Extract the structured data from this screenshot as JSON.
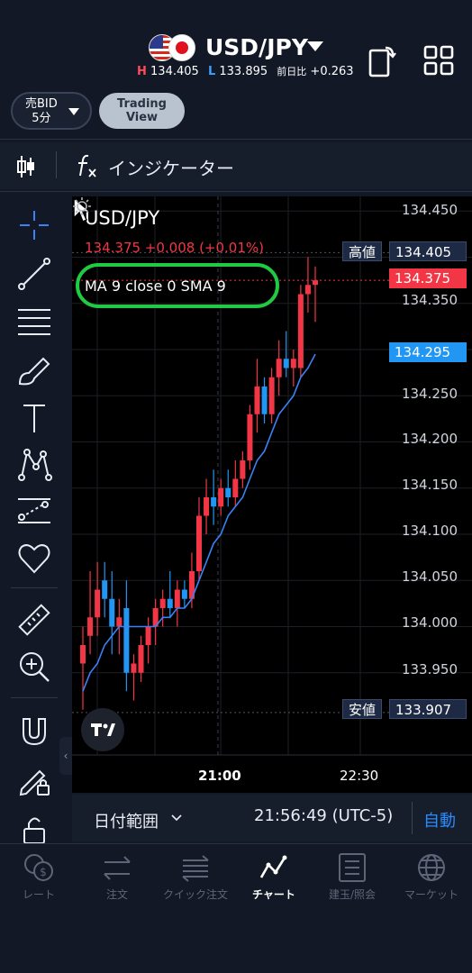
{
  "header": {
    "pair": "USD/JPY",
    "high_prefix": "H",
    "high": "134.405",
    "low_prefix": "L",
    "low": "133.895",
    "change_label": "前日比",
    "change": "+0.263"
  },
  "toolbar": {
    "bid_line1": "売BID",
    "bid_line2": "5分",
    "tv_line1": "Trading",
    "tv_line2": "View",
    "indicator_label": "インジケーター"
  },
  "chart": {
    "title": "USD/JPY",
    "quote": "134.375  +0.008 (+0.01%)",
    "ma_legend": "MA 9 close 0 SMA 9",
    "high_tag_label": "高値",
    "high_tag_value": "134.405",
    "last_price": "134.375",
    "ma_value": "134.295",
    "low_tag_label": "安値",
    "low_tag_value": "133.907",
    "y_ticks": [
      "134.450",
      "134.350",
      "134.250",
      "134.200",
      "134.150",
      "134.100",
      "134.050",
      "134.000",
      "133.950"
    ],
    "x_ticks": [
      "21:00",
      "22:30"
    ]
  },
  "chart_data": {
    "type": "candlestick",
    "title": "USD/JPY",
    "interval": "5分",
    "ylim": [
      133.9,
      134.46
    ],
    "y_ticks": [
      133.95,
      134.0,
      134.05,
      134.1,
      134.15,
      134.2,
      134.25,
      134.3,
      134.35,
      134.4,
      134.45
    ],
    "x_ticks": [
      "21:00",
      "22:30"
    ],
    "candles": [
      {
        "o": 133.96,
        "h": 134.0,
        "l": 133.91,
        "c": 133.98
      },
      {
        "o": 133.99,
        "h": 134.06,
        "l": 133.97,
        "c": 134.01
      },
      {
        "o": 134.01,
        "h": 134.07,
        "l": 133.99,
        "c": 134.04
      },
      {
        "o": 134.05,
        "h": 134.07,
        "l": 134.01,
        "c": 134.03
      },
      {
        "o": 134.03,
        "h": 134.06,
        "l": 133.97,
        "c": 134.0
      },
      {
        "o": 134.0,
        "h": 134.03,
        "l": 133.97,
        "c": 134.01
      },
      {
        "o": 134.02,
        "h": 134.05,
        "l": 133.93,
        "c": 133.95
      },
      {
        "o": 133.95,
        "h": 133.97,
        "l": 133.92,
        "c": 133.96
      },
      {
        "o": 133.95,
        "h": 133.99,
        "l": 133.94,
        "c": 133.98
      },
      {
        "o": 133.98,
        "h": 134.01,
        "l": 133.96,
        "c": 134.0
      },
      {
        "o": 134.0,
        "h": 134.03,
        "l": 133.98,
        "c": 134.02
      },
      {
        "o": 134.02,
        "h": 134.04,
        "l": 134.0,
        "c": 134.03
      },
      {
        "o": 134.03,
        "h": 134.06,
        "l": 134.01,
        "c": 134.02
      },
      {
        "o": 134.02,
        "h": 134.05,
        "l": 134.0,
        "c": 134.04
      },
      {
        "o": 134.04,
        "h": 134.05,
        "l": 134.02,
        "c": 134.03
      },
      {
        "o": 134.03,
        "h": 134.08,
        "l": 134.02,
        "c": 134.06
      },
      {
        "o": 134.06,
        "h": 134.14,
        "l": 134.05,
        "c": 134.12
      },
      {
        "o": 134.12,
        "h": 134.16,
        "l": 134.1,
        "c": 134.14
      },
      {
        "o": 134.14,
        "h": 134.17,
        "l": 134.11,
        "c": 134.13
      },
      {
        "o": 134.13,
        "h": 134.16,
        "l": 134.12,
        "c": 134.15
      },
      {
        "o": 134.15,
        "h": 134.17,
        "l": 134.13,
        "c": 134.14
      },
      {
        "o": 134.14,
        "h": 134.18,
        "l": 134.13,
        "c": 134.16
      },
      {
        "o": 134.16,
        "h": 134.19,
        "l": 134.15,
        "c": 134.18
      },
      {
        "o": 134.18,
        "h": 134.24,
        "l": 134.17,
        "c": 134.23
      },
      {
        "o": 134.23,
        "h": 134.29,
        "l": 134.21,
        "c": 134.26
      },
      {
        "o": 134.26,
        "h": 134.27,
        "l": 134.22,
        "c": 134.23
      },
      {
        "o": 134.23,
        "h": 134.28,
        "l": 134.22,
        "c": 134.27
      },
      {
        "o": 134.27,
        "h": 134.31,
        "l": 134.25,
        "c": 134.29
      },
      {
        "o": 134.29,
        "h": 134.32,
        "l": 134.27,
        "c": 134.28
      },
      {
        "o": 134.28,
        "h": 134.3,
        "l": 134.26,
        "c": 134.29
      },
      {
        "o": 134.28,
        "h": 134.37,
        "l": 134.27,
        "c": 134.36
      },
      {
        "o": 134.36,
        "h": 134.4,
        "l": 134.34,
        "c": 134.37
      },
      {
        "o": 134.37,
        "h": 134.39,
        "l": 134.33,
        "c": 134.375
      }
    ],
    "series": [
      {
        "name": "MA 9 close 0 SMA 9",
        "type": "line",
        "values": [
          133.93,
          133.95,
          133.96,
          133.98,
          133.99,
          134.0,
          134.0,
          134.0,
          134.0,
          134.0,
          134.0,
          134.01,
          134.01,
          134.02,
          134.02,
          134.03,
          134.05,
          134.07,
          134.09,
          134.1,
          134.12,
          134.13,
          134.14,
          134.16,
          134.18,
          134.19,
          134.21,
          134.23,
          134.24,
          134.25,
          134.27,
          134.28,
          134.295
        ]
      }
    ],
    "price_lines": {
      "high": 134.405,
      "last": 134.375,
      "ma": 134.295,
      "low": 133.907
    }
  },
  "footer": {
    "range_label": "日付範囲",
    "time": "21:56:49 (UTC-5)",
    "auto": "自動"
  },
  "nav": {
    "items": [
      {
        "label": "レート",
        "icon": "rate-icon"
      },
      {
        "label": "注文",
        "icon": "order-icon"
      },
      {
        "label": "クイック注文",
        "icon": "quick-order-icon"
      },
      {
        "label": "チャート",
        "icon": "chart-icon"
      },
      {
        "label": "建玉/照会",
        "icon": "positions-icon"
      },
      {
        "label": "マーケット",
        "icon": "market-icon"
      }
    ]
  },
  "colors": {
    "up": "#f23645",
    "down": "#2196f3",
    "ma": "#3b82f6",
    "ring": "#1fcb43"
  }
}
